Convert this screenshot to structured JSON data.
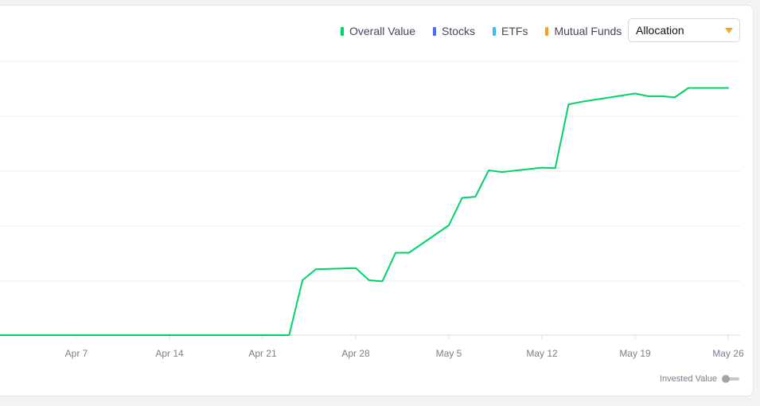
{
  "legend": [
    {
      "label": "Overall Value",
      "color": "#00d26a"
    },
    {
      "label": "Stocks",
      "color": "#5367ff"
    },
    {
      "label": "ETFs",
      "color": "#44b8f2"
    },
    {
      "label": "Mutual Funds",
      "color": "#f0a226"
    }
  ],
  "dropdown": {
    "selected": "Allocation",
    "caret_color": "#f5a623"
  },
  "toggle": {
    "label": "Invested Value",
    "on": false
  },
  "chart_data": {
    "type": "line",
    "title": "",
    "xlabel": "",
    "ylabel": "",
    "grid": true,
    "legend_position": "top-right",
    "x_ticks": [
      "Apr 7",
      "Apr 14",
      "Apr 21",
      "Apr 28",
      "May 5",
      "May 12",
      "May 19",
      "May 26"
    ],
    "series": [
      {
        "name": "Overall Value",
        "color": "#00d26a",
        "x": [
          "Apr 1",
          "Apr 7",
          "Apr 14",
          "Apr 21",
          "Apr 23",
          "Apr 24",
          "Apr 25",
          "Apr 28",
          "Apr 29",
          "Apr 30",
          "May 1",
          "May 2",
          "May 5",
          "May 6",
          "May 7",
          "May 8",
          "May 9",
          "May 12",
          "May 13",
          "May 14",
          "May 15",
          "May 19",
          "May 20",
          "May 21",
          "May 22",
          "May 23",
          "May 26"
        ],
        "values": [
          0,
          0,
          0,
          0,
          0,
          1.0,
          1.2,
          1.22,
          1.0,
          0.98,
          1.5,
          1.5,
          2.0,
          2.5,
          2.52,
          3.0,
          2.97,
          3.05,
          3.04,
          4.2,
          4.25,
          4.4,
          4.35,
          4.35,
          4.33,
          4.5,
          4.5
        ]
      }
    ]
  }
}
